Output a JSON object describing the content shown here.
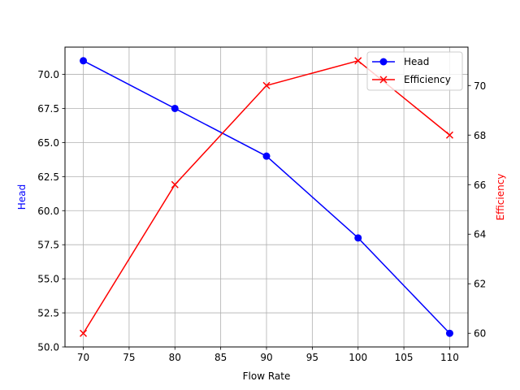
{
  "chart_data": {
    "type": "line",
    "title": "",
    "xlabel": "Flow Rate",
    "x": [
      70,
      80,
      90,
      100,
      110
    ],
    "xlim": [
      68,
      112
    ],
    "xticks": [
      70,
      75,
      80,
      85,
      90,
      95,
      100,
      105,
      110
    ],
    "grid": true,
    "legend_position": "upper right",
    "series": [
      {
        "name": "Head",
        "axis": "left",
        "color": "#0000ff",
        "marker": "circle",
        "values": [
          71.0,
          67.5,
          64.0,
          58.0,
          51.0
        ]
      },
      {
        "name": "Efficiency",
        "axis": "right",
        "color": "#ff0000",
        "marker": "x",
        "values": [
          60,
          66,
          70,
          71,
          68
        ]
      }
    ],
    "left_axis": {
      "label": "Head",
      "color": "#0000ff",
      "ylim": [
        50.0,
        72.0
      ],
      "ticks": [
        "50.0",
        "52.5",
        "55.0",
        "57.5",
        "60.0",
        "62.5",
        "65.0",
        "67.5",
        "70.0"
      ]
    },
    "right_axis": {
      "label": "Efficiency",
      "color": "#ff0000",
      "ylim": [
        59.45,
        71.55
      ],
      "ticks": [
        "60",
        "62",
        "64",
        "66",
        "68",
        "70"
      ]
    }
  }
}
